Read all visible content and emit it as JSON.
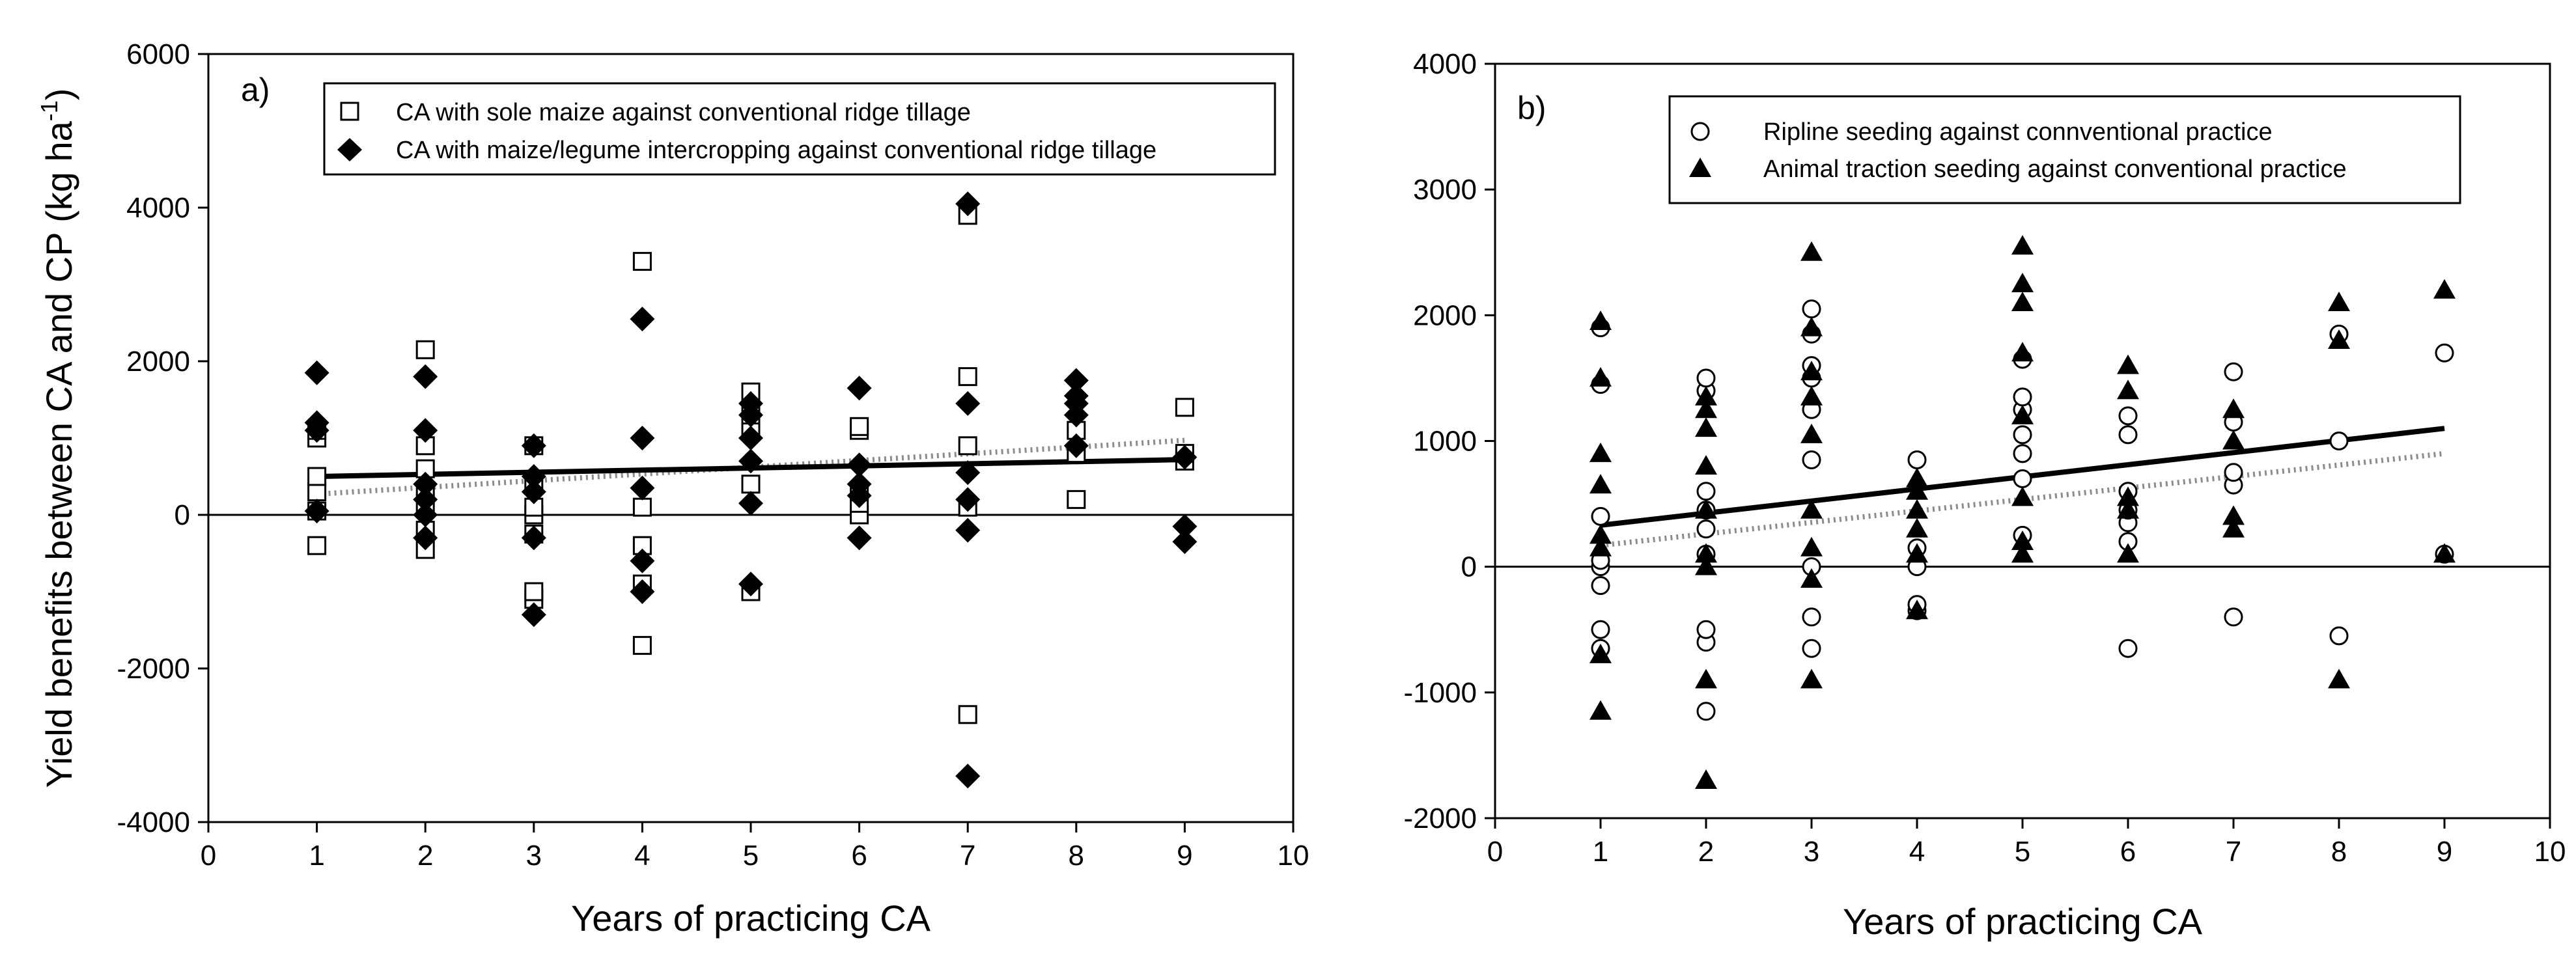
{
  "chart_data": [
    {
      "panel_label": "a)",
      "type": "scatter",
      "xlabel": "Years of practicing CA",
      "ylabel": "Yield benefits between CA and CP (kg ha",
      "ylabel_sup": "-1",
      "ylabel_close": ")",
      "xlim": [
        0,
        10
      ],
      "ylim": [
        -4000,
        6000
      ],
      "xticks": [
        "0",
        "1",
        "2",
        "3",
        "4",
        "5",
        "6",
        "7",
        "8",
        "9",
        "10"
      ],
      "yticks": [
        "-4000",
        "-2000",
        "0",
        "2000",
        "4000",
        "6000"
      ],
      "zero_line": true,
      "legend_placement": "top",
      "series": [
        {
          "name": "CA with sole maize against conventional ridge tillage",
          "marker": "open-square",
          "trend": {
            "style": "dotted",
            "x": [
              1,
              9
            ],
            "y": [
              270,
              970
            ]
          },
          "points": [
            [
              1,
              -400
            ],
            [
              1,
              50
            ],
            [
              1,
              300
            ],
            [
              1,
              500
            ],
            [
              1,
              1000
            ],
            [
              1,
              1100
            ],
            [
              2,
              -450
            ],
            [
              2,
              -200
            ],
            [
              2,
              100
            ],
            [
              2,
              300
            ],
            [
              2,
              600
            ],
            [
              2,
              900
            ],
            [
              2,
              2150
            ],
            [
              3,
              -1100
            ],
            [
              3,
              -1000
            ],
            [
              3,
              -250
            ],
            [
              3,
              0
            ],
            [
              3,
              100
            ],
            [
              3,
              400
            ],
            [
              3,
              900
            ],
            [
              4,
              -1700
            ],
            [
              4,
              -900
            ],
            [
              4,
              -400
            ],
            [
              4,
              100
            ],
            [
              4,
              3300
            ],
            [
              5,
              -1000
            ],
            [
              5,
              400
            ],
            [
              5,
              1100
            ],
            [
              5,
              1300
            ],
            [
              5,
              1600
            ],
            [
              6,
              0
            ],
            [
              6,
              150
            ],
            [
              6,
              300
            ],
            [
              6,
              1100
            ],
            [
              6,
              1150
            ],
            [
              7,
              -2600
            ],
            [
              7,
              100
            ],
            [
              7,
              900
            ],
            [
              7,
              1800
            ],
            [
              7,
              3900
            ],
            [
              8,
              200
            ],
            [
              8,
              800
            ],
            [
              8,
              1100
            ],
            [
              9,
              700
            ],
            [
              9,
              800
            ],
            [
              9,
              1400
            ]
          ]
        },
        {
          "name": "CA with maize/legume intercropping against conventional ridge tillage",
          "marker": "filled-diamond",
          "trend": {
            "style": "solid",
            "x": [
              1,
              9
            ],
            "y": [
              500,
              720
            ]
          },
          "points": [
            [
              1,
              50
            ],
            [
              1,
              1100
            ],
            [
              1,
              1200
            ],
            [
              1,
              1850
            ],
            [
              2,
              -300
            ],
            [
              2,
              0
            ],
            [
              2,
              200
            ],
            [
              2,
              400
            ],
            [
              2,
              1100
            ],
            [
              2,
              1800
            ],
            [
              3,
              -1300
            ],
            [
              3,
              -300
            ],
            [
              3,
              300
            ],
            [
              3,
              500
            ],
            [
              3,
              900
            ],
            [
              4,
              -1000
            ],
            [
              4,
              -600
            ],
            [
              4,
              350
            ],
            [
              4,
              1000
            ],
            [
              4,
              2550
            ],
            [
              5,
              -900
            ],
            [
              5,
              150
            ],
            [
              5,
              700
            ],
            [
              5,
              1000
            ],
            [
              5,
              1300
            ],
            [
              5,
              1450
            ],
            [
              6,
              -300
            ],
            [
              6,
              250
            ],
            [
              6,
              400
            ],
            [
              6,
              650
            ],
            [
              6,
              1650
            ],
            [
              7,
              -3400
            ],
            [
              7,
              -200
            ],
            [
              7,
              200
            ],
            [
              7,
              550
            ],
            [
              7,
              1450
            ],
            [
              7,
              4050
            ],
            [
              8,
              900
            ],
            [
              8,
              1300
            ],
            [
              8,
              1450
            ],
            [
              8,
              1550
            ],
            [
              8,
              1750
            ],
            [
              9,
              -350
            ],
            [
              9,
              -150
            ],
            [
              9,
              750
            ]
          ]
        }
      ]
    },
    {
      "panel_label": "b)",
      "type": "scatter",
      "xlabel": "Years of practicing CA",
      "ylabel": "",
      "xlim": [
        0,
        10
      ],
      "ylim": [
        -2000,
        4000
      ],
      "xticks": [
        "0",
        "1",
        "2",
        "3",
        "4",
        "5",
        "6",
        "7",
        "8",
        "9",
        "10"
      ],
      "yticks": [
        "-2000",
        "-1000",
        "0",
        "1000",
        "2000",
        "3000",
        "4000"
      ],
      "zero_line": true,
      "legend_placement": "top",
      "series": [
        {
          "name": "Ripline seeding against connventional practice",
          "marker": "open-circle",
          "trend": {
            "style": "solid",
            "x": [
              1,
              9
            ],
            "y": [
              330,
              1100
            ]
          },
          "points": [
            [
              1,
              -650
            ],
            [
              1,
              -500
            ],
            [
              1,
              -150
            ],
            [
              1,
              0
            ],
            [
              1,
              50
            ],
            [
              1,
              400
            ],
            [
              1,
              1450
            ],
            [
              1,
              1900
            ],
            [
              2,
              -1150
            ],
            [
              2,
              -600
            ],
            [
              2,
              -500
            ],
            [
              2,
              100
            ],
            [
              2,
              300
            ],
            [
              2,
              450
            ],
            [
              2,
              600
            ],
            [
              2,
              1400
            ],
            [
              2,
              1500
            ],
            [
              3,
              -650
            ],
            [
              3,
              -400
            ],
            [
              3,
              0
            ],
            [
              3,
              850
            ],
            [
              3,
              1250
            ],
            [
              3,
              1500
            ],
            [
              3,
              1600
            ],
            [
              3,
              1850
            ],
            [
              3,
              2050
            ],
            [
              4,
              -350
            ],
            [
              4,
              -300
            ],
            [
              4,
              0
            ],
            [
              4,
              150
            ],
            [
              4,
              850
            ],
            [
              5,
              250
            ],
            [
              5,
              700
            ],
            [
              5,
              900
            ],
            [
              5,
              1050
            ],
            [
              5,
              1250
            ],
            [
              5,
              1350
            ],
            [
              5,
              1650
            ],
            [
              6,
              -650
            ],
            [
              6,
              200
            ],
            [
              6,
              350
            ],
            [
              6,
              450
            ],
            [
              6,
              600
            ],
            [
              6,
              1050
            ],
            [
              6,
              1200
            ],
            [
              7,
              -400
            ],
            [
              7,
              650
            ],
            [
              7,
              750
            ],
            [
              7,
              1150
            ],
            [
              7,
              1550
            ],
            [
              8,
              -550
            ],
            [
              8,
              1000
            ],
            [
              8,
              1850
            ],
            [
              9,
              100
            ],
            [
              9,
              1700
            ]
          ]
        },
        {
          "name": "Animal traction seeding against conventional practice",
          "marker": "filled-triangle",
          "trend": {
            "style": "dotted",
            "x": [
              1,
              9
            ],
            "y": [
              170,
              900
            ]
          },
          "points": [
            [
              1,
              -1150
            ],
            [
              1,
              -700
            ],
            [
              1,
              150
            ],
            [
              1,
              250
            ],
            [
              1,
              650
            ],
            [
              1,
              900
            ],
            [
              1,
              1500
            ],
            [
              1,
              1950
            ],
            [
              2,
              -1700
            ],
            [
              2,
              -900
            ],
            [
              2,
              0
            ],
            [
              2,
              100
            ],
            [
              2,
              450
            ],
            [
              2,
              800
            ],
            [
              2,
              1100
            ],
            [
              2,
              1250
            ],
            [
              2,
              1350
            ],
            [
              3,
              -900
            ],
            [
              3,
              -100
            ],
            [
              3,
              150
            ],
            [
              3,
              450
            ],
            [
              3,
              1050
            ],
            [
              3,
              1350
            ],
            [
              3,
              1550
            ],
            [
              3,
              1900
            ],
            [
              3,
              2500
            ],
            [
              4,
              -350
            ],
            [
              4,
              100
            ],
            [
              4,
              300
            ],
            [
              4,
              450
            ],
            [
              4,
              600
            ],
            [
              4,
              700
            ],
            [
              5,
              100
            ],
            [
              5,
              200
            ],
            [
              5,
              550
            ],
            [
              5,
              1200
            ],
            [
              5,
              1700
            ],
            [
              5,
              2100
            ],
            [
              5,
              2250
            ],
            [
              5,
              2550
            ],
            [
              6,
              100
            ],
            [
              6,
              450
            ],
            [
              6,
              550
            ],
            [
              6,
              1400
            ],
            [
              6,
              1600
            ],
            [
              7,
              300
            ],
            [
              7,
              400
            ],
            [
              7,
              1000
            ],
            [
              7,
              1250
            ],
            [
              8,
              -900
            ],
            [
              8,
              1800
            ],
            [
              8,
              2100
            ],
            [
              9,
              100
            ],
            [
              9,
              2200
            ]
          ]
        }
      ]
    }
  ]
}
